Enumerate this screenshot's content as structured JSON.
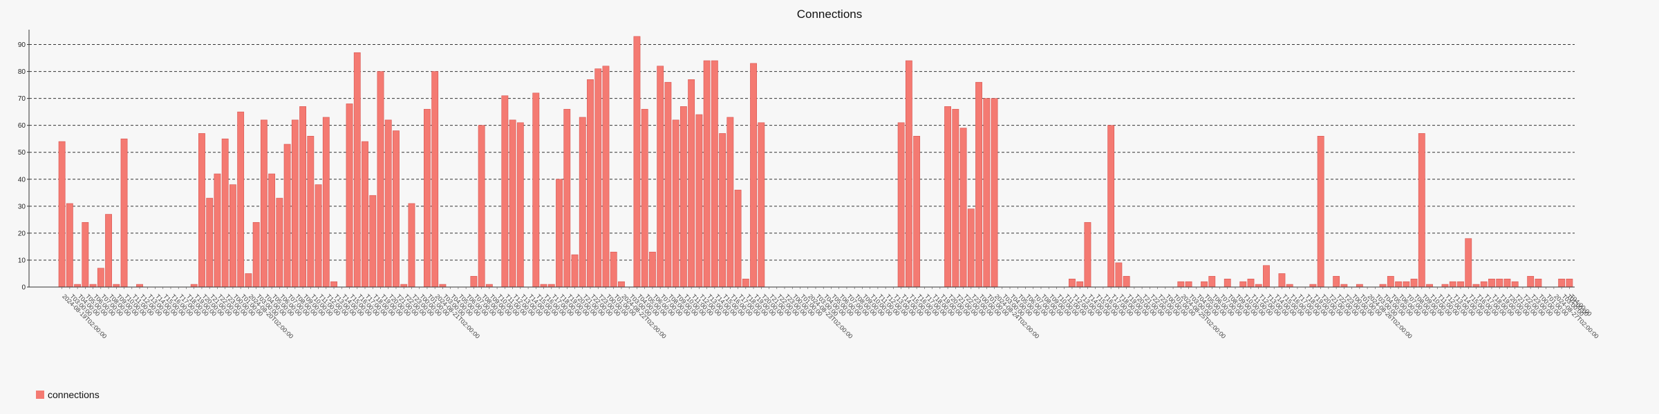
{
  "chart_data": {
    "type": "bar",
    "title": "Connections",
    "xlabel": "",
    "ylabel": "",
    "ylim": [
      0,
      95
    ],
    "yticks": [
      0,
      10,
      20,
      30,
      40,
      50,
      60,
      70,
      80,
      90
    ],
    "grid": "horizontal dashed",
    "legend_position": "bottom-left",
    "date_labels": [
      "2024-08-19",
      "2024-08-20",
      "2024-08-21",
      "2024-08-22",
      "2024-08-23",
      "2024-08-24",
      "2024-08-25",
      "2024-08-26",
      "2024-08-27"
    ],
    "first_label": "2024-08-19T02:00:00",
    "last_label": "T01:00:00",
    "series": [
      {
        "name": "connections",
        "color": "#f47a72",
        "values": [
          54,
          31,
          1,
          24,
          1,
          7,
          27,
          1,
          55,
          0,
          1,
          0,
          0,
          0,
          0,
          0,
          0,
          1,
          57,
          33,
          42,
          55,
          38,
          65,
          5,
          24,
          62,
          42,
          33,
          53,
          62,
          67,
          56,
          38,
          63,
          2,
          0,
          68,
          87,
          54,
          34,
          80,
          62,
          58,
          1,
          31,
          0,
          66,
          80,
          1,
          0,
          0,
          0,
          4,
          60,
          1,
          0,
          71,
          62,
          61,
          0,
          72,
          1,
          1,
          40,
          66,
          12,
          63,
          77,
          81,
          82,
          13,
          2,
          0,
          93,
          66,
          13,
          82,
          76,
          62,
          67,
          77,
          64,
          84,
          84,
          57,
          63,
          36,
          3,
          83,
          61,
          0,
          0,
          0,
          0,
          0,
          0,
          0,
          0,
          0,
          0,
          0,
          0,
          0,
          0,
          0,
          0,
          0,
          61,
          84,
          56,
          0,
          0,
          0,
          67,
          66,
          59,
          29,
          76,
          70,
          70,
          0,
          0,
          0,
          0,
          0,
          0,
          0,
          0,
          0,
          3,
          2,
          24,
          0,
          0,
          60,
          9,
          4,
          0,
          0,
          0,
          0,
          0,
          0,
          2,
          2,
          0,
          2,
          4,
          0,
          3,
          0,
          2,
          3,
          1,
          8,
          0,
          5,
          1,
          0,
          0,
          1,
          56,
          0,
          4,
          1,
          0,
          1,
          0,
          0,
          1,
          4,
          2,
          2,
          3,
          57,
          1,
          0,
          1,
          2,
          2,
          18,
          1,
          2,
          3,
          3,
          3,
          2,
          0,
          4,
          3,
          0,
          0,
          3,
          3
        ]
      }
    ]
  }
}
